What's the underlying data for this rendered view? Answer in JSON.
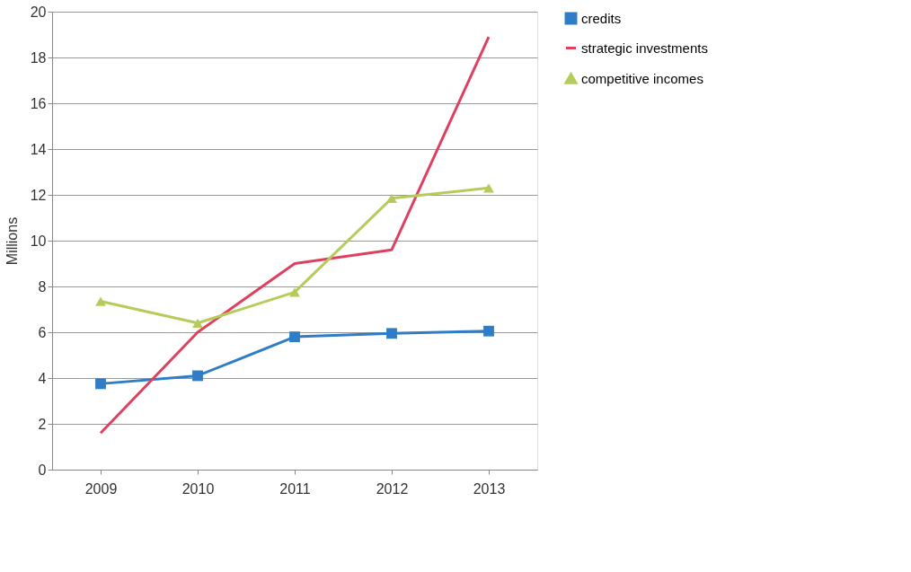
{
  "chart_data": {
    "type": "line",
    "ylabel": "Millions",
    "categories": [
      "2009",
      "2010",
      "2011",
      "2012",
      "2013"
    ],
    "ylim": [
      0,
      20
    ],
    "yticks": [
      0,
      2,
      4,
      6,
      8,
      10,
      12,
      14,
      16,
      18,
      20
    ],
    "grid": "y",
    "legend": "right",
    "series": [
      {
        "name": "credits",
        "color": "#2e7dc6",
        "marker": "square",
        "values": [
          3.75,
          4.1,
          5.8,
          5.95,
          6.05
        ]
      },
      {
        "name": "strategic investments",
        "color": "#e0405f",
        "marker": "none",
        "values": [
          1.6,
          6.0,
          9.0,
          9.6,
          18.9
        ]
      },
      {
        "name": "competitive incomes",
        "color": "#b5cc5a",
        "marker": "triangle",
        "values": [
          7.35,
          6.4,
          7.75,
          11.85,
          12.3
        ]
      }
    ]
  }
}
